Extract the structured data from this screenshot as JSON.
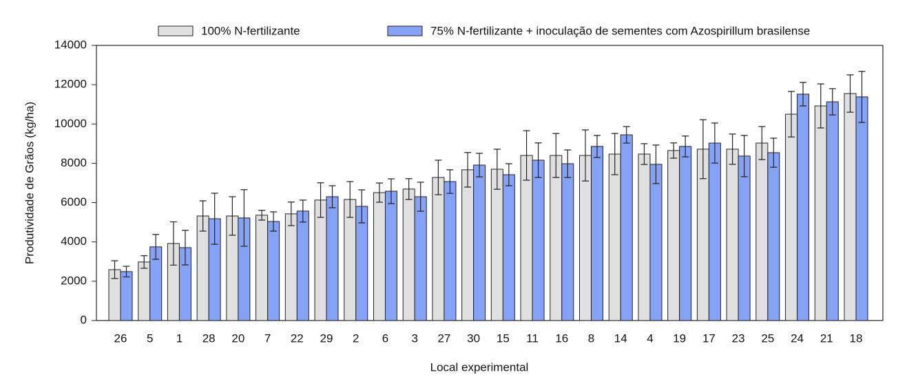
{
  "chart_data": {
    "type": "bar",
    "x_label": "Local experimental",
    "y_label": "Produtividade de Grãos (kg/ha)",
    "categories": [
      "26",
      "5",
      "1",
      "28",
      "20",
      "7",
      "22",
      "29",
      "2",
      "6",
      "3",
      "27",
      "30",
      "15",
      "11",
      "16",
      "8",
      "14",
      "4",
      "19",
      "17",
      "23",
      "25",
      "24",
      "21",
      "18"
    ],
    "series": [
      {
        "name": "100% N-fertilizante",
        "color": "#e0e0e0",
        "values": [
          2590,
          2980,
          3920,
          5320,
          5320,
          5360,
          5430,
          6130,
          6160,
          6510,
          6690,
          7280,
          7670,
          7700,
          8400,
          8400,
          8400,
          8470,
          8470,
          8650,
          8720,
          8720,
          9030,
          10500,
          10920,
          11550
        ],
        "errors": [
          450,
          320,
          1100,
          770,
          980,
          250,
          600,
          880,
          910,
          490,
          530,
          880,
          880,
          1020,
          1260,
          1120,
          1300,
          1050,
          530,
          390,
          1500,
          770,
          840,
          1160,
          1120,
          950
        ]
      },
      {
        "name": "75% N-fertilizante + inoculação de sementes com Azospirillum brasilense",
        "color": "#86a2f6",
        "values": [
          2490,
          3750,
          3710,
          5180,
          5220,
          5040,
          5570,
          6300,
          5810,
          6580,
          6300,
          7070,
          7910,
          7420,
          8160,
          7980,
          8860,
          9450,
          7950,
          8860,
          9030,
          8370,
          8540,
          11520,
          11130,
          11380
        ],
        "errors": [
          270,
          630,
          880,
          1300,
          1440,
          490,
          560,
          560,
          840,
          630,
          740,
          600,
          600,
          560,
          880,
          700,
          560,
          420,
          980,
          530,
          1020,
          1050,
          740,
          600,
          670,
          1300
        ]
      }
    ],
    "ylim": [
      0,
      14000
    ],
    "yticks": [
      0,
      2000,
      4000,
      6000,
      8000,
      10000,
      12000,
      14000
    ],
    "legend": "top"
  }
}
